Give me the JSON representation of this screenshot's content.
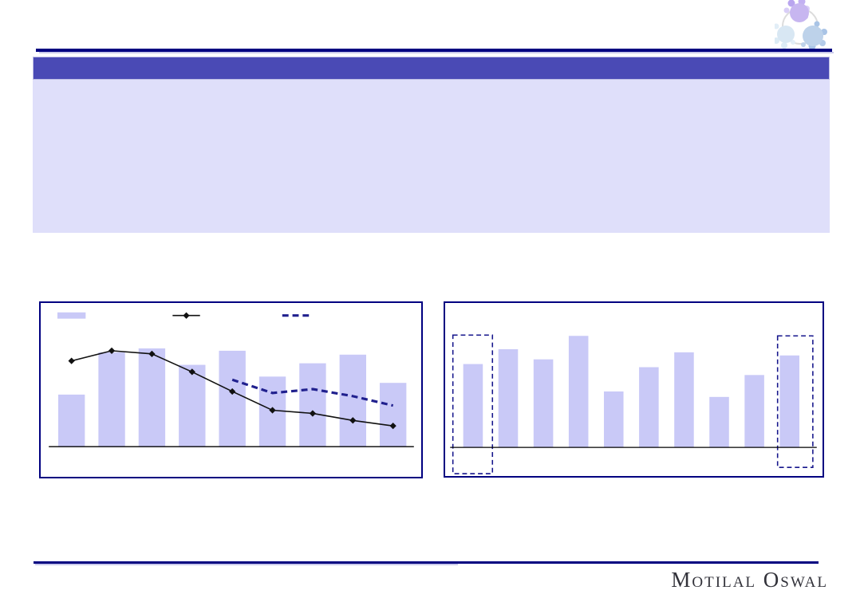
{
  "theme": {
    "page_bg": "#ffffff",
    "navy": "#000080",
    "header_bar": "#4a4ab5",
    "content_panel": "#dfdffa",
    "bar_fill": "#c9c9f7",
    "line_black": "#111111",
    "dashed_navy": "#20208e",
    "highlight_dash": "#16168c",
    "brand_text_color": "#32323a",
    "logo_purple": "#c7b6f0",
    "logo_pale_blue": "#d8e7f3",
    "logo_blue": "#bdd2ea"
  },
  "header": {
    "title": ""
  },
  "content_box": {
    "text": ""
  },
  "footer": {
    "brand": "Motilal Oswal"
  },
  "logo": {
    "name": "motilal-oswal-molecule-logo"
  },
  "chart_data": [
    {
      "type": "bar",
      "title": "",
      "xlabel": "",
      "ylabel": "",
      "categories": [
        "",
        "",
        "",
        "",
        "",
        "",
        "",
        "",
        ""
      ],
      "axes": {
        "tick_labels_visible": false,
        "baseline": true,
        "grid": false
      },
      "legend": {
        "position": "top",
        "labels_visible": true,
        "labels": [
          "",
          "",
          ""
        ]
      },
      "series": [
        {
          "name": "",
          "type": "bar",
          "color": "#c9c9f7",
          "values": [
            66,
            120,
            125,
            104,
            122,
            89,
            106,
            117,
            81
          ]
        },
        {
          "name": "",
          "type": "line",
          "marker": "diamond",
          "color": "#111111",
          "values": [
            109,
            122,
            118,
            95,
            70,
            46,
            42,
            33,
            26
          ]
        },
        {
          "name": "",
          "type": "dashed-line",
          "marker": "none",
          "color": "#20208e",
          "values": [
            null,
            null,
            null,
            null,
            85,
            68,
            73,
            64,
            52
          ]
        }
      ]
    },
    {
      "type": "bar",
      "title": "",
      "xlabel": "",
      "ylabel": "",
      "categories": [
        "",
        "",
        "",
        "",
        "",
        "",
        "",
        "",
        "",
        ""
      ],
      "axes": {
        "tick_labels_visible": false,
        "baseline": true,
        "grid": false
      },
      "legend": {
        "position": "none",
        "labels_visible": false,
        "labels": []
      },
      "series": [
        {
          "name": "",
          "type": "bar",
          "color": "#c9c9f7",
          "values": [
            106,
            125,
            112,
            142,
            71,
            102,
            121,
            64,
            92,
            117
          ]
        }
      ],
      "highlights": {
        "style": "dashed-box",
        "color": "#16168c",
        "indices": [
          0,
          9
        ]
      }
    }
  ]
}
